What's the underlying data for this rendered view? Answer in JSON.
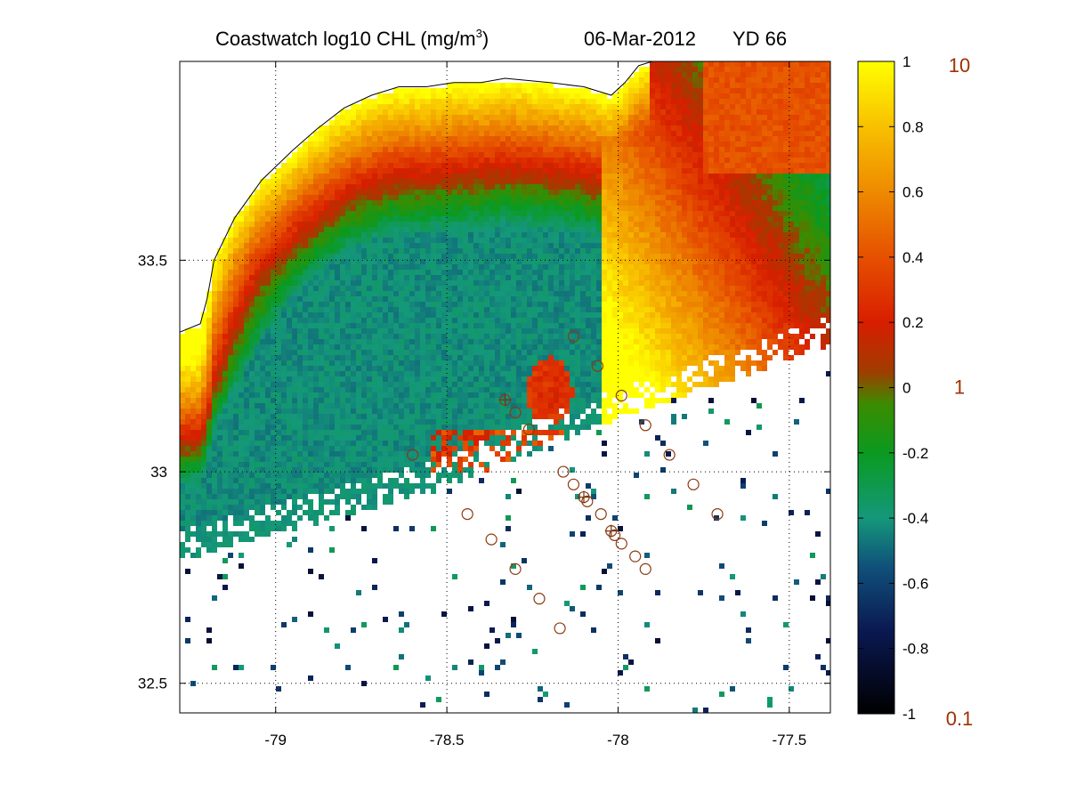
{
  "title": {
    "main": "Coastwatch  log10  CHL (mg/m",
    "superscript": "3",
    "close": ")",
    "date": "06-Mar-2012",
    "yearday": "YD 66"
  },
  "axes": {
    "x_ticks": [
      {
        "value": -79,
        "label": "-79"
      },
      {
        "value": -78.5,
        "label": "-78.5"
      },
      {
        "value": -78,
        "label": "-78"
      },
      {
        "value": -77.5,
        "label": "-77.5"
      }
    ],
    "y_ticks": [
      {
        "value": 33.5,
        "label": "33.5"
      },
      {
        "value": 33,
        "label": "33"
      },
      {
        "value": 32.5,
        "label": "32.5"
      }
    ],
    "xlim": [
      -79.28,
      -77.38
    ],
    "ylim": [
      32.43,
      33.97
    ],
    "grid": true,
    "grid_style": "dotted"
  },
  "colorbar": {
    "range": [
      -1,
      1
    ],
    "ticks": [
      {
        "value": 1,
        "label": "1"
      },
      {
        "value": 0.8,
        "label": "0.8"
      },
      {
        "value": 0.6,
        "label": "0.6"
      },
      {
        "value": 0.4,
        "label": "0.4"
      },
      {
        "value": 0.2,
        "label": "0.2"
      },
      {
        "value": 0,
        "label": "0"
      },
      {
        "value": -0.2,
        "label": "-0.2"
      },
      {
        "value": -0.4,
        "label": "-0.4"
      },
      {
        "value": -0.6,
        "label": "-0.6"
      },
      {
        "value": -0.8,
        "label": "-0.8"
      },
      {
        "value": -1,
        "label": "-1"
      }
    ],
    "secondary_labels": [
      {
        "value": 1,
        "label": "10"
      },
      {
        "value": 0,
        "label": "1"
      },
      {
        "value": -1,
        "label": "0.1"
      }
    ],
    "stops": [
      {
        "value": -1.0,
        "color": "#000000"
      },
      {
        "value": -0.75,
        "color": "#0a1850"
      },
      {
        "value": -0.55,
        "color": "#10507a"
      },
      {
        "value": -0.4,
        "color": "#14987a"
      },
      {
        "value": -0.2,
        "color": "#0a9a20"
      },
      {
        "value": -0.05,
        "color": "#3c8c00"
      },
      {
        "value": 0.05,
        "color": "#a03c00"
      },
      {
        "value": 0.2,
        "color": "#d81e00"
      },
      {
        "value": 0.4,
        "color": "#e65000"
      },
      {
        "value": 0.6,
        "color": "#ee8a00"
      },
      {
        "value": 0.8,
        "color": "#f8c000"
      },
      {
        "value": 1.0,
        "color": "#ffff00"
      }
    ],
    "secondary_label_color": "#a03000"
  },
  "chart_data": {
    "type": "heatmap",
    "variable": "log10 CHL",
    "units": "mg/m3",
    "cruise_stations": [
      {
        "lon": -78.13,
        "lat": 33.32
      },
      {
        "lon": -78.06,
        "lat": 33.25
      },
      {
        "lon": -77.99,
        "lat": 33.18
      },
      {
        "lon": -77.92,
        "lat": 33.11
      },
      {
        "lon": -77.85,
        "lat": 33.04
      },
      {
        "lon": -77.78,
        "lat": 32.97
      },
      {
        "lon": -77.71,
        "lat": 32.9
      },
      {
        "lon": -78.33,
        "lat": 33.17
      },
      {
        "lon": -78.3,
        "lat": 33.14
      },
      {
        "lon": -78.26,
        "lat": 33.1
      },
      {
        "lon": -78.6,
        "lat": 33.04
      },
      {
        "lon": -78.16,
        "lat": 33.0
      },
      {
        "lon": -78.13,
        "lat": 32.97
      },
      {
        "lon": -78.1,
        "lat": 32.94
      },
      {
        "lon": -78.09,
        "lat": 32.93
      },
      {
        "lon": -78.05,
        "lat": 32.9
      },
      {
        "lon": -78.02,
        "lat": 32.86
      },
      {
        "lon": -78.01,
        "lat": 32.85
      },
      {
        "lon": -77.99,
        "lat": 32.83
      },
      {
        "lon": -77.95,
        "lat": 32.8
      },
      {
        "lon": -77.92,
        "lat": 32.77
      },
      {
        "lon": -78.44,
        "lat": 32.9
      },
      {
        "lon": -78.37,
        "lat": 32.84
      },
      {
        "lon": -78.3,
        "lat": 32.77
      },
      {
        "lon": -78.23,
        "lat": 32.7
      },
      {
        "lon": -78.17,
        "lat": 32.63
      }
    ],
    "stations_with_cross": [
      {
        "lon": -78.33,
        "lat": 33.17
      },
      {
        "lon": -78.1,
        "lat": 32.94
      },
      {
        "lon": -78.02,
        "lat": 32.86
      }
    ],
    "coastline": [
      [
        -79.28,
        33.33
      ],
      [
        -79.22,
        33.35
      ],
      [
        -79.2,
        33.41
      ],
      [
        -79.18,
        33.5
      ],
      [
        -79.12,
        33.6
      ],
      [
        -79.04,
        33.69
      ],
      [
        -78.95,
        33.76
      ],
      [
        -78.88,
        33.81
      ],
      [
        -78.8,
        33.86
      ],
      [
        -78.72,
        33.89
      ],
      [
        -78.64,
        33.91
      ],
      [
        -78.56,
        33.91
      ],
      [
        -78.48,
        33.92
      ],
      [
        -78.4,
        33.92
      ],
      [
        -78.33,
        33.93
      ],
      [
        -78.2,
        33.92
      ],
      [
        -78.1,
        33.91
      ],
      [
        -78.02,
        33.89
      ],
      [
        -77.98,
        33.92
      ],
      [
        -77.94,
        33.96
      ],
      [
        -77.9,
        33.97
      ]
    ],
    "region_field": {
      "high_nearshore_peak": [
        -79.2,
        33.2
      ],
      "bloom_patch": [
        -78.2,
        33.19
      ],
      "cloud_mask": "offshore south-east"
    }
  }
}
